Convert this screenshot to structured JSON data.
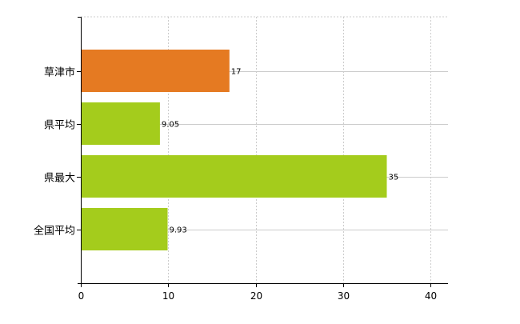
{
  "chart_data": {
    "type": "bar",
    "orientation": "horizontal",
    "categories": [
      "草津市",
      "県平均",
      "県最大",
      "全国平均"
    ],
    "values": [
      17,
      9.05,
      35,
      9.93
    ],
    "value_labels": [
      "17",
      "9.05",
      "35",
      "9.93"
    ],
    "xlim": [
      0,
      42
    ],
    "xticks": [
      0,
      10,
      20,
      30,
      40
    ],
    "tick_labels": [
      "0",
      "10",
      "20",
      "30",
      "40"
    ],
    "grid": true,
    "title": "",
    "xlabel": "",
    "ylabel": "",
    "bar_colors": [
      "#e57a22",
      "#a4cc1c",
      "#a4cc1c",
      "#a4cc1c"
    ]
  }
}
